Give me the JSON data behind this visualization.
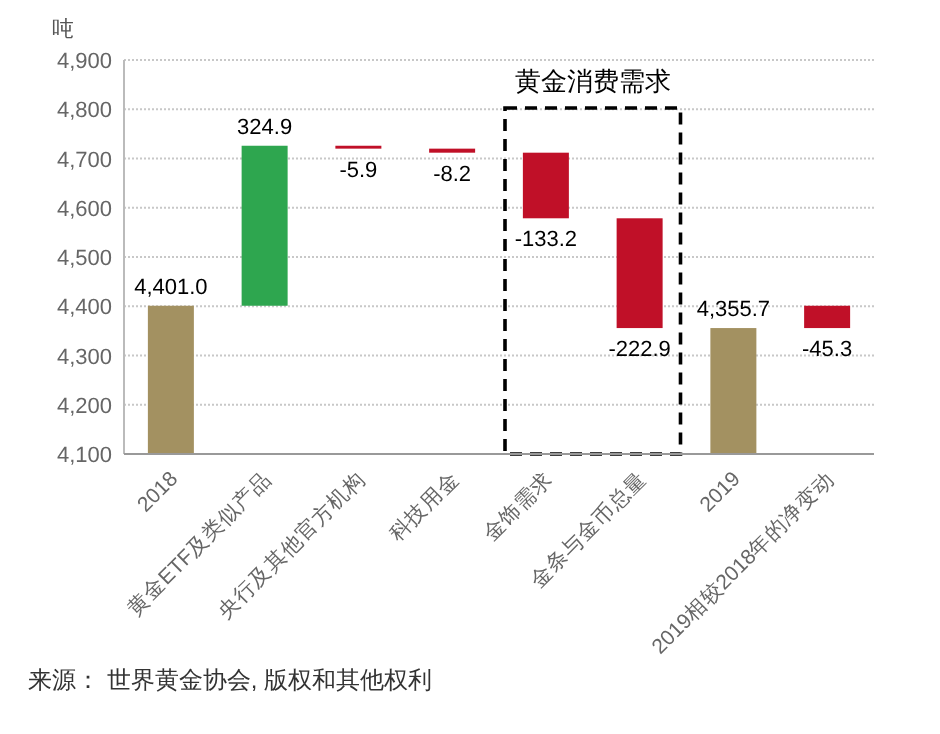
{
  "chart_data": {
    "type": "bar",
    "ylabel": "吨",
    "categories": [
      "2018",
      "黄金ETF及类似产品",
      "央行及其他官方机构",
      "科技用金",
      "金饰需求",
      "金条与金币总量",
      "2019",
      "2019相较2018年的净变动"
    ],
    "values": [
      4401.0,
      324.9,
      -5.9,
      -8.2,
      -133.2,
      -222.9,
      4355.7,
      -45.3
    ],
    "base": [
      0,
      4401.0,
      4725.9,
      4720.0,
      4711.8,
      4578.6,
      0,
      4401.0
    ],
    "colors": [
      "#a39161",
      "#2ea64f",
      "#c01028",
      "#c01028",
      "#c01028",
      "#c01028",
      "#a39161",
      "#c01028"
    ],
    "value_labels": [
      "4,401.0",
      "324.9",
      "-5.9",
      "-8.2",
      "-133.2",
      "-222.9",
      "4,355.7",
      "-45.3"
    ],
    "ylim": [
      4100,
      4900
    ],
    "yticks": [
      {
        "value": 4100,
        "label": "4,100"
      },
      {
        "value": 4200,
        "label": "4,200"
      },
      {
        "value": 4300,
        "label": "4,300"
      },
      {
        "value": 4400,
        "label": "4,400"
      },
      {
        "value": 4500,
        "label": "4,500"
      },
      {
        "value": 4600,
        "label": "4,600"
      },
      {
        "value": 4700,
        "label": "4,700"
      },
      {
        "value": 4800,
        "label": "4,800"
      },
      {
        "value": 4900,
        "label": "4,900"
      }
    ],
    "grid": "y",
    "annotations": [
      "黄金消费需求",
      "来源： 世界黄金协会, 版权和其他权利"
    ]
  }
}
